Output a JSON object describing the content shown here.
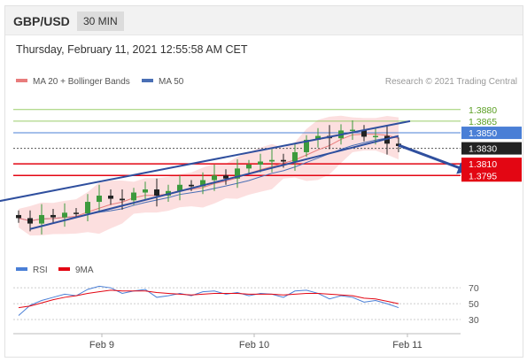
{
  "header": {
    "pair": "GBP/USD",
    "timeframe": "30 MIN"
  },
  "datetime": "Thursday, February 11, 2021 12:55:58 AM CET",
  "legend": {
    "ma_bb": "MA 20 + Bollinger Bands",
    "ma50": "MA 50"
  },
  "credit": "Research © 2021 Trading Central",
  "rsi_legend": {
    "rsi": "RSI",
    "ma": "9MA"
  },
  "colors": {
    "up": "#3d9a3d",
    "down": "#222222",
    "ma20": "#e87c7c",
    "ma50": "#4a6fb5",
    "band": "#fbd9d9",
    "trend": "#2f4f9e",
    "support": "#e30613",
    "resistance": "#9acd6a",
    "pivot": "#4a7fd6"
  },
  "chart_data": [
    {
      "type": "candlestick",
      "title": "GBP/USD",
      "timeframe": "30 MIN",
      "x_labels": [
        "Feb 9",
        "Feb 10",
        "Feb 11"
      ],
      "ylim": [
        1.3704,
        1.3898
      ],
      "levels": [
        {
          "value": 1.388,
          "label": "1.3880",
          "kind": "resistance"
        },
        {
          "value": 1.3865,
          "label": "1.3865",
          "kind": "resistance"
        },
        {
          "value": 1.385,
          "label": "1.3850",
          "kind": "pivot"
        },
        {
          "value": 1.383,
          "label": "1.3830",
          "kind": "current"
        },
        {
          "value": 1.381,
          "label": "1.3810",
          "kind": "support"
        },
        {
          "value": 1.3795,
          "label": "1.3795",
          "kind": "support"
        }
      ],
      "channel": {
        "upper": [
          [
            -2,
            1.3761
          ],
          [
            34,
            1.3865
          ]
        ],
        "lower": [
          [
            1,
            1.3726
          ],
          [
            33,
            1.3846
          ]
        ]
      },
      "forecast_arrow": [
        [
          33,
          1.3834
        ],
        [
          39,
          1.38
        ]
      ],
      "close": [
        1.374,
        1.3733,
        1.3744,
        1.3741,
        1.3747,
        1.3746,
        1.3761,
        1.3769,
        1.3765,
        1.3763,
        1.3773,
        1.3777,
        1.3769,
        1.3775,
        1.3783,
        1.3781,
        1.3789,
        1.3795,
        1.3791,
        1.3804,
        1.3809,
        1.3813,
        1.3815,
        1.3813,
        1.3825,
        1.3841,
        1.3846,
        1.3843,
        1.3853,
        1.3854,
        1.3845,
        1.3846,
        1.3836,
        1.3833
      ]
    },
    {
      "type": "line",
      "title": "RSI",
      "series": [
        {
          "name": "RSI"
        },
        {
          "name": "9MA"
        }
      ],
      "yticks": [
        70,
        50,
        30
      ],
      "ylim": [
        20,
        78
      ],
      "rsi": [
        35,
        48,
        54,
        58,
        62,
        60,
        68,
        72,
        70,
        63,
        66,
        68,
        58,
        60,
        63,
        60,
        65,
        66,
        62,
        64,
        60,
        63,
        62,
        58,
        66,
        67,
        63,
        56,
        60,
        58,
        52,
        54,
        50,
        45
      ],
      "rsi_ma": [
        45,
        47,
        51,
        55,
        58,
        60,
        63,
        65,
        67,
        66,
        66,
        66,
        64,
        63,
        62,
        61,
        62,
        63,
        63,
        63,
        62,
        62,
        62,
        61,
        62,
        63,
        63,
        62,
        61,
        60,
        57,
        56,
        53,
        50
      ]
    }
  ]
}
